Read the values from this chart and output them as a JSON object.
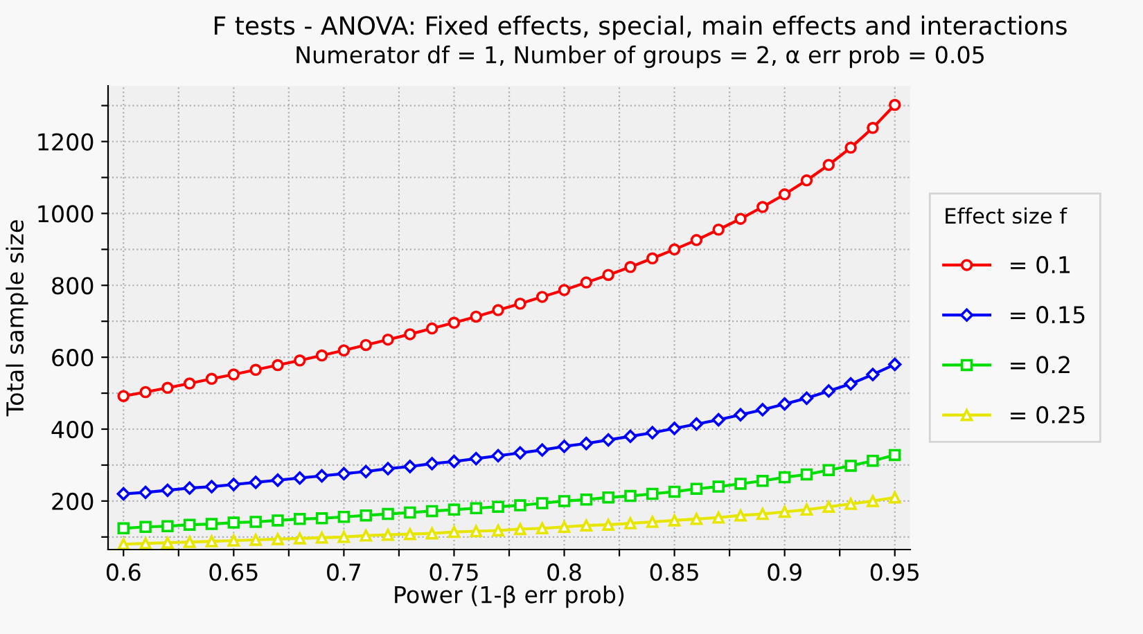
{
  "chart_data": {
    "type": "line",
    "title": "F tests - ANOVA: Fixed effects, special, main effects and interactions",
    "subtitle": "Numerator df = 1, Number of groups = 2, α err prob = 0.05",
    "xlabel": "Power (1-β err prob)",
    "ylabel": "Total sample size",
    "legend_title": "Effect size f",
    "x": [
      0.6,
      0.61,
      0.62,
      0.63,
      0.64,
      0.65,
      0.66,
      0.67,
      0.68,
      0.69,
      0.7,
      0.71,
      0.72,
      0.73,
      0.74,
      0.75,
      0.76,
      0.77,
      0.78,
      0.79,
      0.8,
      0.81,
      0.82,
      0.83,
      0.84,
      0.85,
      0.86,
      0.87,
      0.88,
      0.89,
      0.9,
      0.91,
      0.92,
      0.93,
      0.94,
      0.95
    ],
    "series": [
      {
        "name": "= 0.1",
        "color": "#ff0000",
        "marker": "circle",
        "values": [
          492,
          503,
          515,
          527,
          540,
          552,
          565,
          578,
          591,
          605,
          619,
          634,
          649,
          664,
          680,
          696,
          713,
          731,
          749,
          768,
          787,
          808,
          829,
          851,
          875,
          900,
          926,
          955,
          985,
          1018,
          1053,
          1092,
          1135,
          1183,
          1238,
          1302
        ]
      },
      {
        "name": "= 0.15",
        "color": "#0000ff",
        "marker": "diamond",
        "values": [
          220,
          224,
          230,
          236,
          240,
          246,
          252,
          258,
          264,
          270,
          276,
          282,
          290,
          296,
          304,
          310,
          318,
          326,
          334,
          342,
          352,
          360,
          370,
          380,
          390,
          402,
          414,
          426,
          440,
          454,
          470,
          486,
          506,
          526,
          552,
          580
        ]
      },
      {
        "name": "= 0.2",
        "color": "#00dd00",
        "marker": "square",
        "values": [
          124,
          128,
          130,
          134,
          136,
          140,
          142,
          146,
          150,
          152,
          156,
          160,
          164,
          168,
          172,
          176,
          180,
          184,
          188,
          194,
          200,
          204,
          210,
          214,
          220,
          226,
          234,
          240,
          248,
          256,
          266,
          274,
          286,
          298,
          312,
          328
        ]
      },
      {
        "name": "= 0.25",
        "color": "#e6e600",
        "marker": "triangle",
        "values": [
          80,
          82,
          84,
          86,
          88,
          90,
          92,
          94,
          96,
          98,
          100,
          104,
          106,
          108,
          110,
          114,
          116,
          118,
          122,
          124,
          128,
          132,
          134,
          138,
          142,
          146,
          150,
          154,
          160,
          164,
          170,
          176,
          184,
          192,
          200,
          210
        ]
      }
    ],
    "xlim": [
      0.593,
      0.957
    ],
    "xticks": [
      0.6,
      {
        "value": 0.625,
        "label": null
      },
      0.65,
      {
        "value": 0.675,
        "label": null
      },
      0.7,
      {
        "value": 0.725,
        "label": null
      },
      0.75,
      {
        "value": 0.775,
        "label": null
      },
      0.8,
      {
        "value": 0.825,
        "label": null
      },
      0.85,
      {
        "value": 0.875,
        "label": null
      },
      0.9,
      {
        "value": 0.925,
        "label": null
      },
      0.95
    ],
    "ylim": [
      65,
      1355
    ],
    "yticks": [
      {
        "value": 100,
        "label": null
      },
      200,
      {
        "value": 300,
        "label": null
      },
      400,
      {
        "value": 500,
        "label": null
      },
      600,
      {
        "value": 700,
        "label": null
      },
      800,
      {
        "value": 900,
        "label": null
      },
      1000,
      {
        "value": 1100,
        "label": null
      },
      1200,
      {
        "value": 1300,
        "label": null
      }
    ],
    "grid": true,
    "legend": "right",
    "line_style": "solid"
  }
}
